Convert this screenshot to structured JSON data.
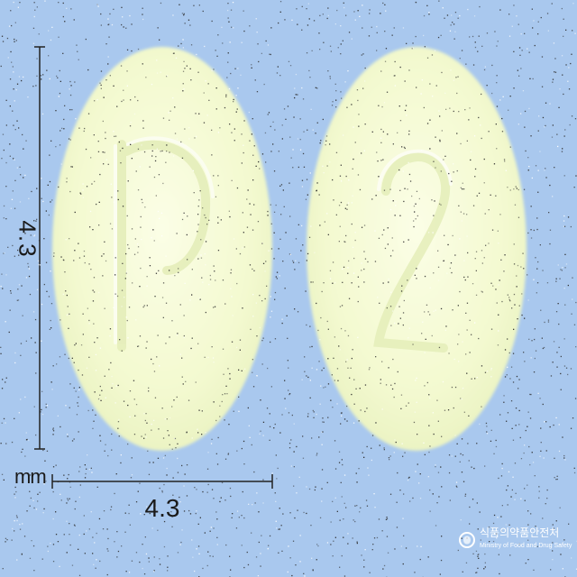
{
  "background_color": "#a9c8ee",
  "tablet_color": "#f6fbd4",
  "tablets": [
    {
      "name": "tablet-left",
      "imprint": "P"
    },
    {
      "name": "tablet-right",
      "imprint": "2"
    }
  ],
  "dimensions": {
    "height_label": "4.3",
    "width_label": "4.3",
    "unit": "mm"
  },
  "logo": {
    "name": "식품의약품안전처",
    "subtitle": "Ministry of Food and Drug Safety"
  }
}
